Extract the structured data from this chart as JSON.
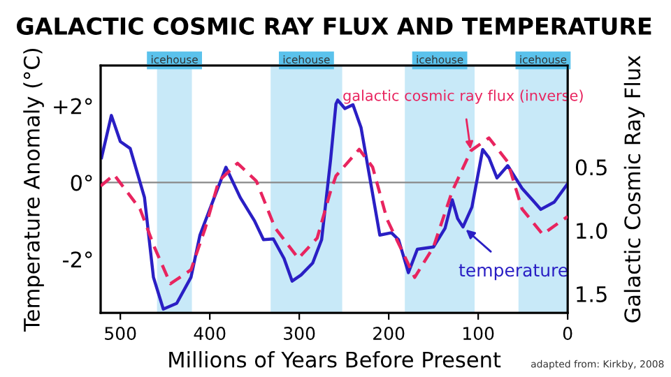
{
  "chart_data": {
    "type": "line",
    "title": "GALACTIC COSMIC RAY FLUX AND TEMPERATURE",
    "xlabel": "Millions of Years Before Present",
    "ylabel": "Temperature Anomaly (°C)",
    "y2label": "Galactic Cosmic Ray Flux",
    "xlim": [
      522,
      0
    ],
    "xticks": [
      500,
      400,
      300,
      200,
      100,
      0
    ],
    "ylim": [
      -3.4,
      3.05
    ],
    "yticks": [
      {
        "value": 2,
        "label": "+2°"
      },
      {
        "value": 0,
        "label": "0°"
      },
      {
        "value": -2,
        "label": "-2°"
      }
    ],
    "y2lim": [
      1.65,
      -0.3
    ],
    "y2ticks": [
      0.5,
      {
        "value": 1,
        "label": "1.0"
      },
      1.5
    ],
    "series": [
      {
        "color": "#e8245f",
        "axis": "y2",
        "line_style": "dashed",
        "x": [
          522,
          507,
          478,
          462,
          444,
          421,
          405,
          390,
          369,
          348,
          327,
          301,
          280,
          265,
          259,
          233,
          218,
          202,
          171,
          150,
          129,
          108,
          88,
          67,
          51,
          28,
          0
        ],
        "values": [
          0.65,
          0.56,
          0.83,
          1.13,
          1.42,
          1.31,
          0.98,
          0.61,
          0.47,
          0.61,
          0.98,
          1.22,
          1.06,
          0.69,
          0.57,
          0.36,
          0.5,
          0.91,
          1.37,
          1.13,
          0.69,
          0.37,
          0.27,
          0.46,
          0.83,
          1.03,
          0.89
        ]
      },
      {
        "color": "#2a1fc4",
        "line_style": "solid",
        "x": [
          521,
          510,
          500,
          489,
          473,
          463,
          452,
          437,
          421,
          411,
          395,
          382,
          366,
          350,
          340,
          329,
          317,
          308,
          298,
          285,
          275,
          265,
          259,
          257,
          249,
          240,
          231,
          220,
          210,
          197,
          189,
          178,
          168,
          150,
          137,
          129,
          123,
          117,
          107,
          95,
          88,
          79,
          67,
          51,
          30,
          15,
          0
        ],
        "values": [
          0.65,
          1.75,
          1.07,
          0.89,
          -0.39,
          -2.47,
          -3.3,
          -3.15,
          -2.47,
          -1.37,
          -0.39,
          0.4,
          -0.39,
          -1.0,
          -1.49,
          -1.47,
          -1.98,
          -2.57,
          -2.41,
          -2.1,
          -1.49,
          0.59,
          2.05,
          2.15,
          1.93,
          2.03,
          1.44,
          -0.03,
          -1.37,
          -1.31,
          -1.49,
          -2.35,
          -1.74,
          -1.68,
          -1.19,
          -0.45,
          -0.94,
          -1.16,
          -0.64,
          0.86,
          0.65,
          0.12,
          0.44,
          -0.15,
          -0.7,
          -0.51,
          -0.03
        ]
      }
    ],
    "ref_lines": [
      {
        "axis": "y",
        "value": 0,
        "color": "#888888"
      }
    ],
    "bands": [
      {
        "axis": "x",
        "from": 459,
        "to": 420,
        "label": "icehouse",
        "color": "#c8e9f8"
      },
      {
        "axis": "x",
        "from": 332,
        "to": 252,
        "label": "icehouse",
        "color": "#c8e9f8"
      },
      {
        "axis": "x",
        "from": 182,
        "to": 104,
        "label": "icehouse",
        "color": "#c8e9f8"
      },
      {
        "axis": "x",
        "from": 55,
        "to": 0,
        "label": "icehouse",
        "color": "#c8e9f8"
      }
    ],
    "annotations": [
      {
        "text": "galactic cosmic ray flux (inverse)",
        "x": 108,
        "y": 0.77
      },
      {
        "text": "temperature",
        "x": 117,
        "y": -1.16
      },
      "adapted from: Kirkby, 2008"
    ],
    "grid": false,
    "legend": false
  }
}
